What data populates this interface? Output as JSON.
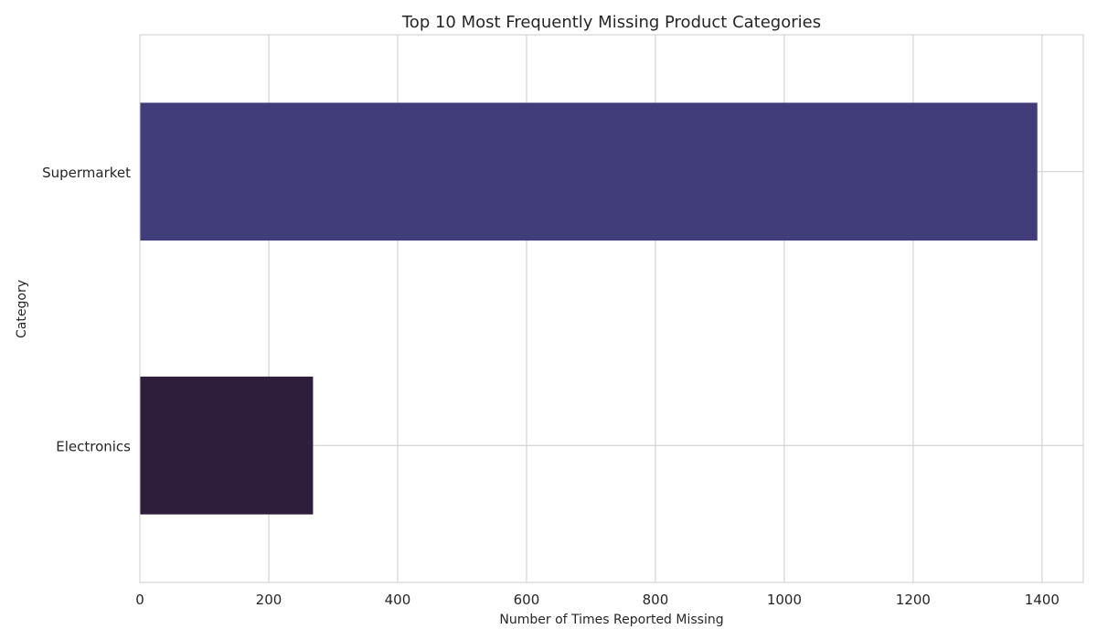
{
  "chart_data": {
    "type": "bar",
    "orientation": "horizontal",
    "title": "Top 10 Most Frequently Missing Product Categories",
    "xlabel": "Number of Times Reported Missing",
    "ylabel": "Category",
    "categories": [
      "Supermarket",
      "Electronics"
    ],
    "values": [
      1392,
      268
    ],
    "colors": [
      "#413d7b",
      "#2e1e3b"
    ],
    "xlim": [
      0,
      1464
    ],
    "xticks": [
      0,
      200,
      400,
      600,
      800,
      1000,
      1200,
      1400
    ],
    "grid": true,
    "legend": "none"
  }
}
